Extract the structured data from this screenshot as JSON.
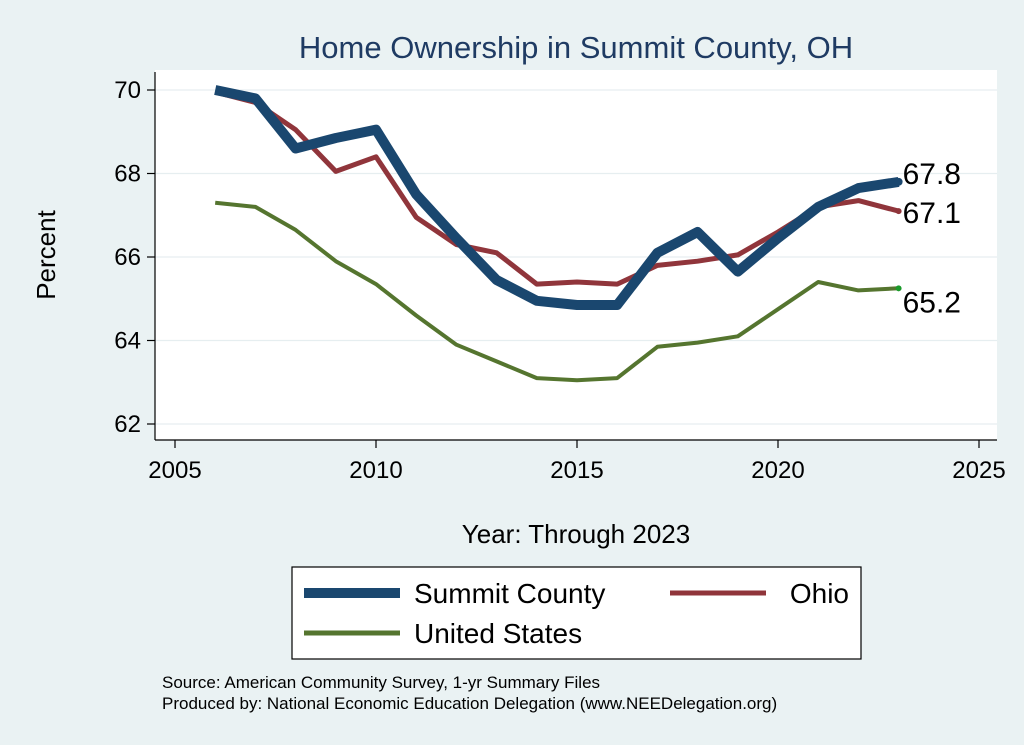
{
  "chart_data": {
    "type": "line",
    "title": "Home Ownership in Summit County, OH",
    "xlabel": "Year: Through 2023",
    "ylabel": "Percent",
    "xlim": [
      2005,
      2025
    ],
    "ylim": [
      62,
      70
    ],
    "x_ticks": [
      "2005",
      "2010",
      "2015",
      "2020",
      "2025"
    ],
    "y_ticks": [
      "62",
      "64",
      "66",
      "68",
      "70"
    ],
    "grid": true,
    "legend_placement": "bottom",
    "x": [
      2006,
      2007,
      2008,
      2009,
      2010,
      2011,
      2012,
      2013,
      2014,
      2015,
      2016,
      2017,
      2018,
      2019,
      2020,
      2021,
      2022,
      2023
    ],
    "series": [
      {
        "name": "Summit County",
        "color": "#1a476f",
        "values": [
          70.0,
          69.8,
          68.6,
          68.85,
          69.05,
          67.5,
          66.45,
          65.45,
          64.95,
          64.85,
          64.85,
          66.1,
          66.6,
          65.65,
          66.45,
          67.2,
          67.65,
          67.8
        ],
        "end_label": "67.8"
      },
      {
        "name": "Ohio",
        "color": "#90353b",
        "values": [
          69.95,
          69.7,
          69.05,
          68.05,
          68.4,
          66.95,
          66.3,
          66.1,
          65.35,
          65.4,
          65.35,
          65.8,
          65.9,
          66.05,
          66.6,
          67.2,
          67.35,
          67.1
        ],
        "end_label": "67.1"
      },
      {
        "name": "United States",
        "color": "#55752f",
        "values": [
          67.3,
          67.2,
          66.65,
          65.9,
          65.35,
          64.6,
          63.9,
          63.5,
          63.1,
          63.05,
          63.1,
          63.85,
          63.95,
          64.1,
          64.75,
          65.4,
          65.2,
          65.25
        ],
        "end_label": "65.2"
      }
    ]
  },
  "source_lines": [
    "Source: American Community Survey, 1-yr Summary Files",
    "Produced by: National Economic Education Delegation (www.NEEDelegation.org)"
  ]
}
